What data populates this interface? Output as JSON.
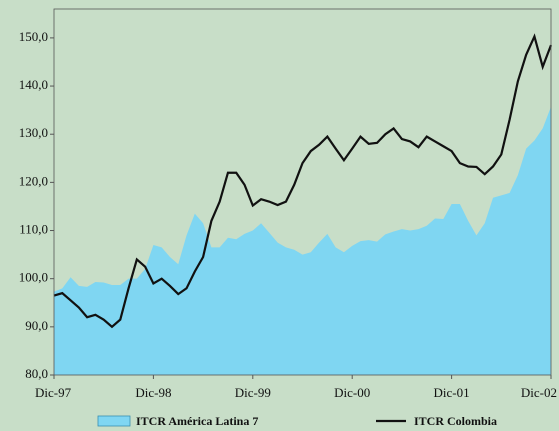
{
  "chart_data": {
    "type": "area-line",
    "categories": [
      "Dic-97",
      null,
      null,
      null,
      null,
      null,
      null,
      null,
      null,
      null,
      null,
      null,
      "Dic-98",
      null,
      null,
      null,
      null,
      null,
      null,
      null,
      null,
      null,
      null,
      null,
      "Dic-99",
      null,
      null,
      null,
      null,
      null,
      null,
      null,
      null,
      null,
      null,
      null,
      "Dic-00",
      null,
      null,
      null,
      null,
      null,
      null,
      null,
      null,
      null,
      null,
      null,
      "Dic-01",
      null,
      null,
      null,
      null,
      null,
      null,
      null,
      null,
      null,
      null,
      null,
      "Dic-02"
    ],
    "series": [
      {
        "name": "ITCR América Latina 7",
        "color": "#7fd6f2",
        "kind": "area",
        "values": [
          97.3,
          98,
          100.3,
          98.5,
          98.3,
          99.3,
          99.2,
          98.7,
          98.7,
          100,
          100,
          102,
          107,
          106.5,
          104.5,
          103,
          109,
          113.5,
          111.5,
          106.5,
          106.5,
          108.5,
          108.2,
          109.3,
          110,
          111.5,
          109.5,
          107.5,
          106.5,
          106,
          105,
          105.5,
          107.5,
          109.3,
          106.5,
          105.5,
          106.8,
          107.8,
          108,
          107.7,
          109.2,
          109.8,
          110.3,
          110,
          110.3,
          111,
          112.5,
          112.4,
          115.5,
          115.5,
          112,
          109,
          111.5,
          116.8,
          117.3,
          117.8,
          121.5,
          127,
          128.7,
          131.2,
          135.7
        ]
      },
      {
        "name": "ITCR Colombia",
        "color": "#111111",
        "kind": "line",
        "values": [
          96.5,
          97,
          95.5,
          94,
          92,
          92.5,
          91.5,
          90,
          91.5,
          98,
          104,
          102.5,
          99,
          100,
          98.5,
          96.8,
          98,
          101.5,
          104.5,
          112,
          116,
          122,
          122,
          119.5,
          115.2,
          116.5,
          116,
          115.3,
          116,
          119.5,
          124,
          126.5,
          127.8,
          129.5,
          127,
          124.6,
          127,
          129.5,
          128,
          128.2,
          130,
          131.2,
          129,
          128.5,
          127.3,
          129.5,
          128.5,
          127.5,
          126.5,
          124,
          123.3,
          123.2,
          121.7,
          123.3,
          125.8,
          133,
          141,
          146.5,
          150.3,
          144,
          148.5
        ]
      }
    ],
    "ylim": [
      80,
      156
    ],
    "yticks": [
      {
        "value": 80,
        "label": "80,0"
      },
      {
        "value": 90,
        "label": "90,0"
      },
      {
        "value": 100,
        "label": "100,0"
      },
      {
        "value": 110,
        "label": "110,0"
      },
      {
        "value": 120,
        "label": "120,0"
      },
      {
        "value": 130,
        "label": "130,0"
      },
      {
        "value": 140,
        "label": "140,0"
      },
      {
        "value": 150,
        "label": "150,0"
      }
    ]
  }
}
